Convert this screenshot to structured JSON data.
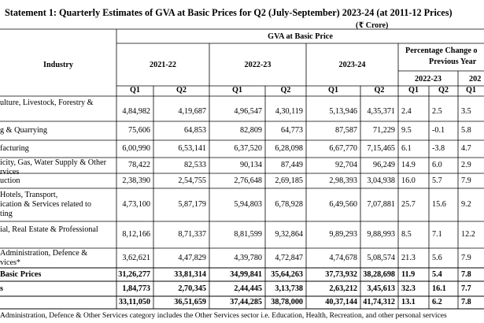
{
  "title": "Statement 1: Quarterly Estimates of GVA at Basic Prices for Q2 (July-September) 2023-24 (at 2011-12 Prices)",
  "unit": "(₹ Crore)",
  "header": {
    "industry": "Industry",
    "gva": "GVA at Basic Price",
    "years": [
      "2021-22",
      "2022-23",
      "2023-24"
    ],
    "pct_line1": "Percentage Change o",
    "pct_line2": "Previous Year",
    "pct_years": [
      "2022-23",
      "202"
    ],
    "quarters": [
      "Q1",
      "Q2",
      "Q1",
      "Q2",
      "Q1",
      "Q2",
      "Q1",
      "Q2",
      "Q1"
    ]
  },
  "rows": [
    {
      "label": [
        "ulture, Livestock, Forestry &",
        ""
      ],
      "values": [
        "4,84,982",
        "4,19,687",
        "4,96,547",
        "4,30,119",
        "5,13,946",
        "4,35,371",
        "2.4",
        "2.5",
        "3.5"
      ]
    },
    {
      "label": [
        "g & Quarrying"
      ],
      "values": [
        "75,606",
        "64,853",
        "82,809",
        "64,773",
        "87,587",
        "71,229",
        "9.5",
        "-0.1",
        "5.8"
      ]
    },
    {
      "label": [
        "facturing"
      ],
      "values": [
        "6,00,990",
        "6,53,141",
        "6,37,520",
        "6,28,098",
        "6,67,770",
        "7,15,465",
        "6.1",
        "-3.8",
        "4.7"
      ]
    },
    {
      "label": [
        "icity, Gas, Water Supply & Other",
        "rvices"
      ],
      "values": [
        "78,422",
        "82,533",
        "90,134",
        "87,449",
        "92,704",
        "96,249",
        "14.9",
        "6.0",
        "2.9"
      ]
    },
    {
      "label": [
        "uction"
      ],
      "values": [
        "2,38,390",
        "2,54,755",
        "2,76,648",
        "2,69,185",
        "2,98,393",
        "3,04,938",
        "16.0",
        "5.7",
        "7.9"
      ]
    },
    {
      "label": [
        " Hotels, Transport,",
        "ication & Services related to",
        "ting"
      ],
      "values": [
        "4,73,100",
        "5,87,179",
        "5,94,803",
        "6,78,928",
        "6,49,560",
        "7,07,881",
        "25.7",
        "15.6",
        "9.2"
      ]
    },
    {
      "label": [
        "ial, Real Estate & Professional",
        ""
      ],
      "values": [
        "8,12,166",
        "8,71,337",
        "8,81,599",
        "9,32,864",
        "9,89,293",
        "9,88,993",
        "8.5",
        "7.1",
        "12.2"
      ]
    },
    {
      "label": [
        " Administration, Defence &",
        "vices*"
      ],
      "values": [
        "3,62,621",
        "4,47,829",
        "4,39,780",
        "4,72,847",
        "4,74,678",
        "5,08,574",
        "21.3",
        "5.6",
        "7.9"
      ]
    },
    {
      "label": [
        "Basic Prices"
      ],
      "bold": true,
      "values": [
        "31,26,277",
        "33,81,314",
        "34,99,841",
        "35,64,263",
        "37,73,932",
        "38,28,698",
        "11.9",
        "5.4",
        "7.8"
      ]
    },
    {
      "label": [
        "s"
      ],
      "bold": true,
      "values": [
        "1,84,773",
        "2,70,345",
        "2,44,445",
        "3,13,738",
        "2,63,212",
        "3,45,613",
        "32.3",
        "16.1",
        "7.7"
      ]
    },
    {
      "label": [
        ""
      ],
      "bold": true,
      "values": [
        "33,11,050",
        "36,51,659",
        "37,44,285",
        "38,78,000",
        "40,37,144",
        "41,74,312",
        "13.1",
        "6.2",
        "7.8"
      ]
    }
  ],
  "footnote": "Administration, Defence & Other Services category includes the Other Services sector i.e. Education, Health, Recreation, and other personal services"
}
